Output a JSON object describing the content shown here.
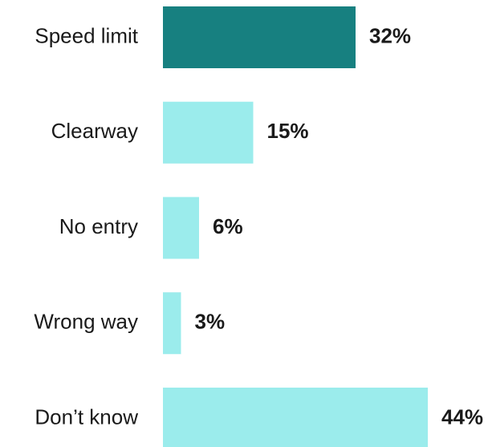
{
  "chart_data": {
    "type": "bar",
    "orientation": "horizontal",
    "categories": [
      "Speed limit",
      "Clearway",
      "No entry",
      "Wrong way",
      "Don’t know"
    ],
    "values": [
      32,
      15,
      6,
      3,
      44
    ],
    "value_labels": [
      "32%",
      "15%",
      "6%",
      "3%",
      "44%"
    ],
    "colors": [
      "#178080",
      "#9becec",
      "#9becec",
      "#9becec",
      "#9becec"
    ]
  }
}
